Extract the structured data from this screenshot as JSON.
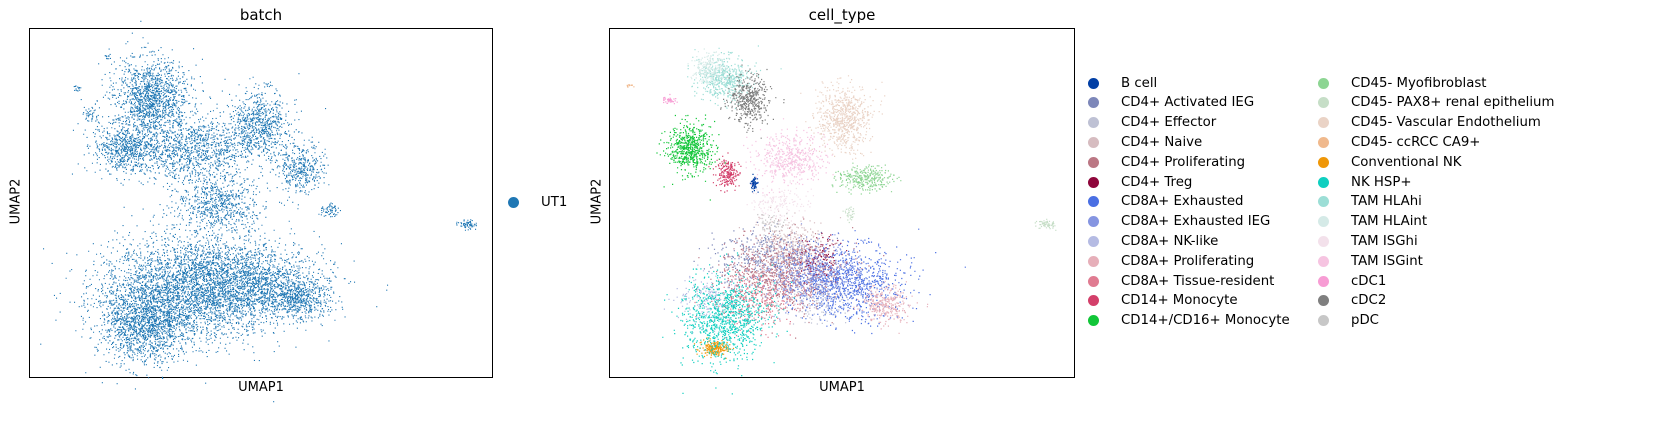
{
  "chart_data": [
    {
      "type": "scatter",
      "title": "batch",
      "xlabel": "UMAP1",
      "ylabel": "UMAP2",
      "legend_position": "right",
      "series": [
        {
          "name": "UT1",
          "color": "#1f77b4"
        }
      ]
    },
    {
      "type": "scatter",
      "title": "cell_type",
      "xlabel": "UMAP1",
      "ylabel": "UMAP2",
      "legend_position": "right",
      "legend_columns": 2,
      "series": [
        {
          "name": "B cell",
          "color": "#023fa5"
        },
        {
          "name": "CD4+ Activated IEG",
          "color": "#7d87b9"
        },
        {
          "name": "CD4+ Effector",
          "color": "#bec1d4"
        },
        {
          "name": "CD4+ Naive",
          "color": "#d6bcc0"
        },
        {
          "name": "CD4+ Proliferating",
          "color": "#bb7784"
        },
        {
          "name": "CD4+ Treg",
          "color": "#8e063b"
        },
        {
          "name": "CD8A+ Exhausted",
          "color": "#4a6fe3"
        },
        {
          "name": "CD8A+ Exhausted IEG",
          "color": "#8595e1"
        },
        {
          "name": "CD8A+ NK-like",
          "color": "#b5bbe3"
        },
        {
          "name": "CD8A+ Proliferating",
          "color": "#e6afb9"
        },
        {
          "name": "CD8A+ Tissue-resident",
          "color": "#e07b91"
        },
        {
          "name": "CD14+ Monocyte",
          "color": "#d33f6a"
        },
        {
          "name": "CD14+/CD16+ Monocyte",
          "color": "#11c638"
        },
        {
          "name": "CD45- Myofibroblast",
          "color": "#8dd593"
        },
        {
          "name": "CD45- PAX8+ renal epithelium",
          "color": "#c6dec7"
        },
        {
          "name": "CD45- Vascular Endothelium",
          "color": "#ead3c6"
        },
        {
          "name": "CD45- ccRCC CA9+",
          "color": "#f0b98d"
        },
        {
          "name": "Conventional NK",
          "color": "#ef9708"
        },
        {
          "name": "NK HSP+",
          "color": "#0fcfc0"
        },
        {
          "name": "TAM HLAhi",
          "color": "#9cded6"
        },
        {
          "name": "TAM HLAint",
          "color": "#d5eae7"
        },
        {
          "name": "TAM ISGhi",
          "color": "#f3e1eb"
        },
        {
          "name": "TAM ISGint",
          "color": "#f6c4e1"
        },
        {
          "name": "cDC1",
          "color": "#f79cd4"
        },
        {
          "name": "cDC2",
          "color": "#7f7f7f"
        },
        {
          "name": "pDC",
          "color": "#c7c7c7"
        }
      ]
    }
  ]
}
